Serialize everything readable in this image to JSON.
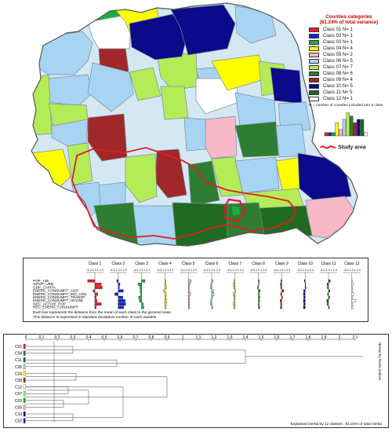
{
  "legend": {
    "title_line1": "Counties categories",
    "title_line2": "(81.24% of total variance)",
    "classes": [
      {
        "label": "Class 01 N= 1",
        "color": "#ee1c24"
      },
      {
        "label": "Class 02 N= 1",
        "color": "#1020d8"
      },
      {
        "label": "Class 03 N= 1",
        "color": "#1aaf3c"
      },
      {
        "label": "Class 04 N= 4",
        "color": "#ffff00"
      },
      {
        "label": "Class 05 N= 2",
        "color": "#f7b8c8"
      },
      {
        "label": "Class 06 N= 5",
        "color": "#a8d4f4"
      },
      {
        "label": "Class 07 N= 7",
        "color": "#b4ec58"
      },
      {
        "label": "Class 08 N= 6",
        "color": "#2e7d32"
      },
      {
        "label": "Class 09 N= 4",
        "color": "#a0282a"
      },
      {
        "label": "Class 10 N= 5",
        "color": "#0a0a8a"
      },
      {
        "label": "Class 11 N= 5",
        "color": "#1f6b1f"
      },
      {
        "label": "Class 12 N= 1",
        "color": "#ffffff"
      }
    ],
    "note": "N = number of counties included into a class",
    "study_area_label": "Study area"
  },
  "profiles": {
    "class_headers": [
      "Class 1",
      "Class 2",
      "Class 3",
      "Class 4",
      "Class 5",
      "Class 6",
      "Class 7",
      "Class 8",
      "Class 9",
      "Class 10",
      "Class 11",
      "Class 12"
    ],
    "scale_label": "-3-2-1 0 1 2 3",
    "variables": [
      "POP_+65",
      "%POP_URB",
      "GDP_CAPITA",
      "ENERG_CONSUMPT_AGR",
      "ENERG_CONSUMPT_IND_CON",
      "ENERG_CONSUMPT_TRANSP",
      "ENERG_CONSUMPT_HOUSE",
      "%EC_ACTIVE_POP",
      "REG_ENERG_CONSUMPT"
    ],
    "note_line1": "Each bar represents the distance from the mean of each class to the general mean",
    "note_line2": "This distance is expressed in standard deviations number of each variable",
    "values": [
      [
        -2.5,
        2.2,
        2.6,
        -0.6,
        1.0,
        0.5,
        0.8,
        2.2,
        0.5
      ],
      [
        -0.5,
        0.6,
        0.4,
        1.8,
        -1.2,
        1.6,
        2.4,
        2.6,
        1.9
      ],
      [
        1.2,
        -1.2,
        -0.6,
        -0.5,
        -0.4,
        -1.0,
        -0.8,
        0.6,
        0.8
      ],
      [
        0.3,
        0.4,
        0.6,
        -0.5,
        0.5,
        0.4,
        0.6,
        0.5,
        0.4
      ],
      [
        1.0,
        0.6,
        0.3,
        0.5,
        0.8,
        0.4,
        0.5,
        0.4,
        0.5
      ],
      [
        0.5,
        -0.3,
        -0.5,
        0.6,
        0.8,
        0.3,
        -0.3,
        -0.5,
        0.4
      ],
      [
        -0.4,
        -0.6,
        -0.5,
        0.3,
        -0.7,
        -0.4,
        -0.3,
        -0.6,
        -0.5
      ],
      [
        0.3,
        0.2,
        -0.3,
        0.6,
        0.3,
        0.5,
        0.4,
        0.3,
        0.5
      ],
      [
        -0.3,
        -0.5,
        -0.4,
        0.7,
        -0.4,
        0.3,
        -0.6,
        -0.4,
        -0.5
      ],
      [
        -0.3,
        0.2,
        0.3,
        -0.5,
        -0.6,
        -0.5,
        -0.6,
        -0.5,
        -0.6
      ],
      [
        0.6,
        -0.5,
        -0.4,
        0.5,
        -0.3,
        0.4,
        -0.6,
        -0.5,
        0.3
      ],
      [
        0.2,
        0.4,
        0.3,
        0.2,
        0.6,
        0.3,
        1.4,
        0.3,
        0.5
      ]
    ]
  },
  "dendrogram": {
    "axis_ticks": [
      "0",
      "0.1",
      "0.2",
      "0.3",
      "0.4",
      "0.5",
      "0.6",
      "0.7",
      "0.8",
      "0.9",
      "1",
      "1.1",
      "1.2",
      "1.3",
      "1.4",
      "1.5",
      "1.6",
      "1.7",
      "1.8",
      "1.9",
      "2",
      "2.1"
    ],
    "leaves": [
      "C01",
      "C08",
      "C11",
      "C06",
      "C04",
      "C09",
      "C12",
      "C07",
      "C03",
      "C05",
      "C10",
      "C02"
    ],
    "right_label": "Hierarchy levels indices",
    "footer": "Explained inertia by 12 classes : 81.24% of total inertia"
  }
}
